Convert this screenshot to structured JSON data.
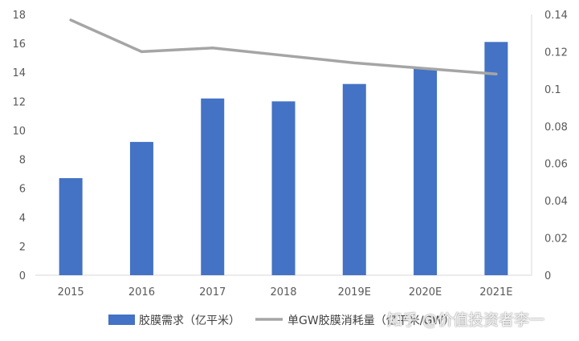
{
  "chart_data": {
    "type": "bar+line",
    "categories": [
      "2015",
      "2016",
      "2017",
      "2018",
      "2019E",
      "2020E",
      "2021E"
    ],
    "series": [
      {
        "name": "胶膜需求（亿平米）",
        "type": "bar",
        "axis": "left",
        "values": [
          6.7,
          9.2,
          12.2,
          12.0,
          13.2,
          14.3,
          16.1
        ],
        "color": "#4472C4"
      },
      {
        "name": "单GW胶膜消耗量（亿平米/GW）",
        "type": "line",
        "axis": "right",
        "values": [
          0.137,
          0.12,
          0.122,
          0.118,
          0.114,
          0.111,
          0.108
        ],
        "color": "#A5A5A5"
      }
    ],
    "y_left": {
      "min": 0,
      "max": 18,
      "step": 2,
      "ticks": [
        "0",
        "2",
        "4",
        "6",
        "8",
        "10",
        "12",
        "14",
        "16",
        "18"
      ]
    },
    "y_right": {
      "min": 0,
      "max": 0.14,
      "step": 0.02,
      "ticks": [
        "0",
        "0.02",
        "0.04",
        "0.06",
        "0.08",
        "0.1",
        "0.12",
        "0.14"
      ]
    },
    "grid": false,
    "legend_position": "bottom",
    "title": "",
    "xlabel": "",
    "ylabel": ""
  },
  "watermark": "知乎 @价值投资者李一"
}
